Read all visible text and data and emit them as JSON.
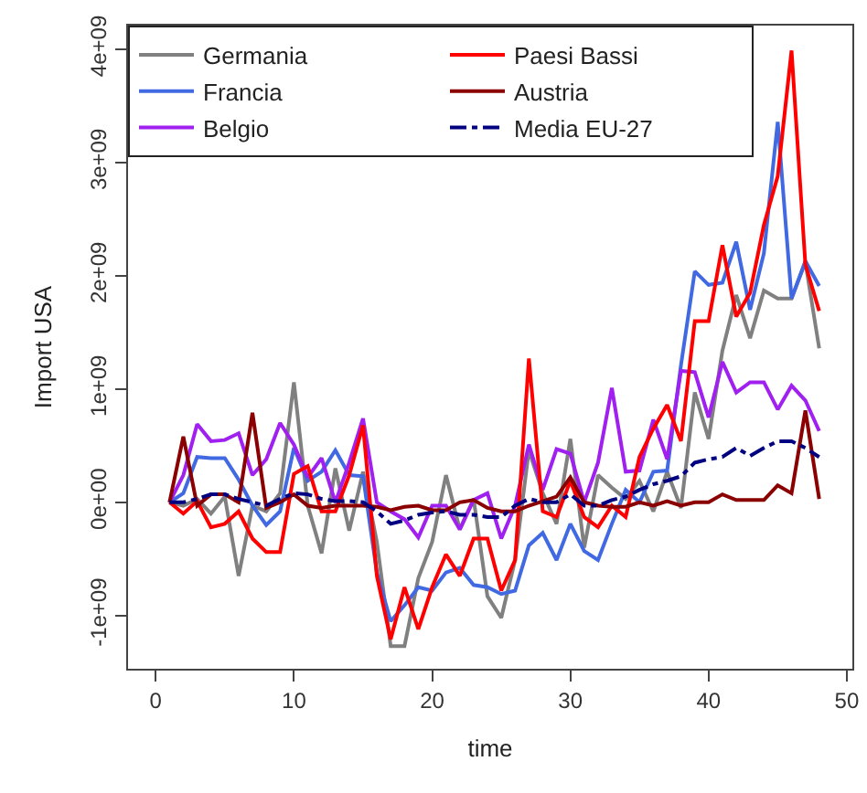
{
  "chart_data": {
    "type": "line",
    "xlabel": "time",
    "ylabel": "Import USA",
    "x": [
      1,
      2,
      3,
      4,
      5,
      6,
      7,
      8,
      9,
      10,
      11,
      12,
      13,
      14,
      15,
      16,
      17,
      18,
      19,
      20,
      21,
      22,
      23,
      24,
      25,
      26,
      27,
      28,
      29,
      30,
      31,
      32,
      33,
      34,
      35,
      36,
      37,
      38,
      39,
      40,
      41,
      42,
      43,
      44,
      45,
      46,
      47,
      48
    ],
    "series": [
      {
        "name": "Germania",
        "color": "#808080",
        "values": [
          0,
          -30000000.0,
          30000000.0,
          -100000000.0,
          50000000.0,
          -650000000.0,
          -30000000.0,
          -80000000.0,
          80000000.0,
          1060000000.0,
          -30000000.0,
          -450000000.0,
          300000000.0,
          -250000000.0,
          270000000.0,
          -350000000.0,
          -1270000000.0,
          -1270000000.0,
          -670000000.0,
          -350000000.0,
          240000000.0,
          -240000000.0,
          30000000.0,
          -830000000.0,
          -1020000000.0,
          -510000000.0,
          460000000.0,
          80000000.0,
          -190000000.0,
          560000000.0,
          -400000000.0,
          240000000.0,
          130000000.0,
          30000000.0,
          190000000.0,
          -80000000.0,
          270000000.0,
          -50000000.0,
          970000000.0,
          560000000.0,
          1340000000.0,
          1830000000.0,
          1450000000.0,
          1870000000.0,
          1800000000.0,
          1800000000.0,
          2120000000.0,
          1360000000.0
        ]
      },
      {
        "name": "Francia",
        "color": "#4169e1",
        "values": [
          0,
          80000000.0,
          400000000.0,
          390000000.0,
          390000000.0,
          200000000.0,
          -30000000.0,
          -200000000.0,
          -80000000.0,
          480000000.0,
          190000000.0,
          270000000.0,
          460000000.0,
          240000000.0,
          230000000.0,
          -620000000.0,
          -1050000000.0,
          -910000000.0,
          -750000000.0,
          -780000000.0,
          -620000000.0,
          -580000000.0,
          -730000000.0,
          -750000000.0,
          -810000000.0,
          -780000000.0,
          -380000000.0,
          -270000000.0,
          -510000000.0,
          -190000000.0,
          -430000000.0,
          -510000000.0,
          -190000000.0,
          110000000.0,
          0,
          270000000.0,
          280000000.0,
          1210000000.0,
          2040000000.0,
          1920000000.0,
          1940000000.0,
          2300000000.0,
          1700000000.0,
          2200000000.0,
          3360000000.0,
          1800000000.0,
          2130000000.0,
          1910000000.0
        ]
      },
      {
        "name": "Belgio",
        "color": "#a020f0",
        "values": [
          0,
          240000000.0,
          690000000.0,
          540000000.0,
          550000000.0,
          610000000.0,
          240000000.0,
          380000000.0,
          700000000.0,
          510000000.0,
          220000000.0,
          390000000.0,
          0,
          350000000.0,
          740000000.0,
          0,
          -80000000.0,
          -150000000.0,
          -310000000.0,
          -30000000.0,
          -30000000.0,
          -240000000.0,
          20000000.0,
          80000000.0,
          -320000000.0,
          -30000000.0,
          510000000.0,
          110000000.0,
          470000000.0,
          430000000.0,
          0,
          350000000.0,
          1010000000.0,
          270000000.0,
          280000000.0,
          730000000.0,
          380000000.0,
          1160000000.0,
          1150000000.0,
          750000000.0,
          1240000000.0,
          970000000.0,
          1060000000.0,
          1060000000.0,
          820000000.0,
          1030000000.0,
          900000000.0,
          630000000.0
        ]
      },
      {
        "name": "Paesi Bassi",
        "color": "#ff0000",
        "values": [
          0,
          -100000000.0,
          10000000.0,
          -220000000.0,
          -190000000.0,
          -80000000.0,
          -320000000.0,
          -440000000.0,
          -440000000.0,
          250000000.0,
          320000000.0,
          -80000000.0,
          -80000000.0,
          240000000.0,
          680000000.0,
          -650000000.0,
          -1210000000.0,
          -750000000.0,
          -1120000000.0,
          -750000000.0,
          -460000000.0,
          -650000000.0,
          -320000000.0,
          -320000000.0,
          -780000000.0,
          -510000000.0,
          1270000000.0,
          -80000000.0,
          -130000000.0,
          190000000.0,
          -130000000.0,
          -220000000.0,
          -30000000.0,
          -130000000.0,
          400000000.0,
          650000000.0,
          860000000.0,
          540000000.0,
          1600000000.0,
          1600000000.0,
          2270000000.0,
          1640000000.0,
          1850000000.0,
          2450000000.0,
          2880000000.0,
          3990000000.0,
          2100000000.0,
          1690000000.0
        ]
      },
      {
        "name": "Austria",
        "color": "#8b0000",
        "values": [
          0,
          580000000.0,
          -30000000.0,
          70000000.0,
          70000000.0,
          0,
          790000000.0,
          -50000000.0,
          0,
          70000000.0,
          -30000000.0,
          -50000000.0,
          -30000000.0,
          -30000000.0,
          -30000000.0,
          -40000000.0,
          -70000000.0,
          -40000000.0,
          -30000000.0,
          -70000000.0,
          -70000000.0,
          0,
          20000000.0,
          -50000000.0,
          -80000000.0,
          -80000000.0,
          -30000000.0,
          10000000.0,
          50000000.0,
          220000000.0,
          0,
          -30000000.0,
          -40000000.0,
          -40000000.0,
          0,
          -30000000.0,
          10000000.0,
          -30000000.0,
          0,
          0,
          70000000.0,
          20000000.0,
          20000000.0,
          20000000.0,
          150000000.0,
          80000000.0,
          810000000.0,
          30000000.0
        ]
      },
      {
        "name": "Media EU-27",
        "color": "#000080",
        "line_style": "dashdot",
        "values": [
          0,
          0,
          30000000.0,
          70000000.0,
          70000000.0,
          30000000.0,
          0,
          -30000000.0,
          30000000.0,
          80000000.0,
          70000000.0,
          30000000.0,
          10000000.0,
          10000000.0,
          0,
          -80000000.0,
          -190000000.0,
          -160000000.0,
          -110000000.0,
          -90000000.0,
          -80000000.0,
          -110000000.0,
          -110000000.0,
          -130000000.0,
          -130000000.0,
          -30000000.0,
          30000000.0,
          0,
          0,
          70000000.0,
          -30000000.0,
          -30000000.0,
          20000000.0,
          50000000.0,
          110000000.0,
          160000000.0,
          190000000.0,
          230000000.0,
          350000000.0,
          380000000.0,
          400000000.0,
          480000000.0,
          410000000.0,
          480000000.0,
          540000000.0,
          540000000.0,
          480000000.0,
          400000000.0
        ]
      }
    ],
    "xlim": [
      -2,
      50.4
    ],
    "xticks": [
      0,
      10,
      20,
      30,
      40,
      50
    ],
    "ylim": [
      -1470000000.0,
      4210000000.0
    ],
    "yticks": [
      {
        "value": -1000000000.0,
        "label": "-1e+09"
      },
      {
        "value": 0,
        "label": "0e+00"
      },
      {
        "value": 1000000000.0,
        "label": "1e+09"
      },
      {
        "value": 2000000000.0,
        "label": "2e+09"
      },
      {
        "value": 3000000000.0,
        "label": "3e+09"
      },
      {
        "value": 4000000000.0,
        "label": "4e+09"
      }
    ],
    "grid": false,
    "legend": "top left",
    "line_style": "solid"
  }
}
